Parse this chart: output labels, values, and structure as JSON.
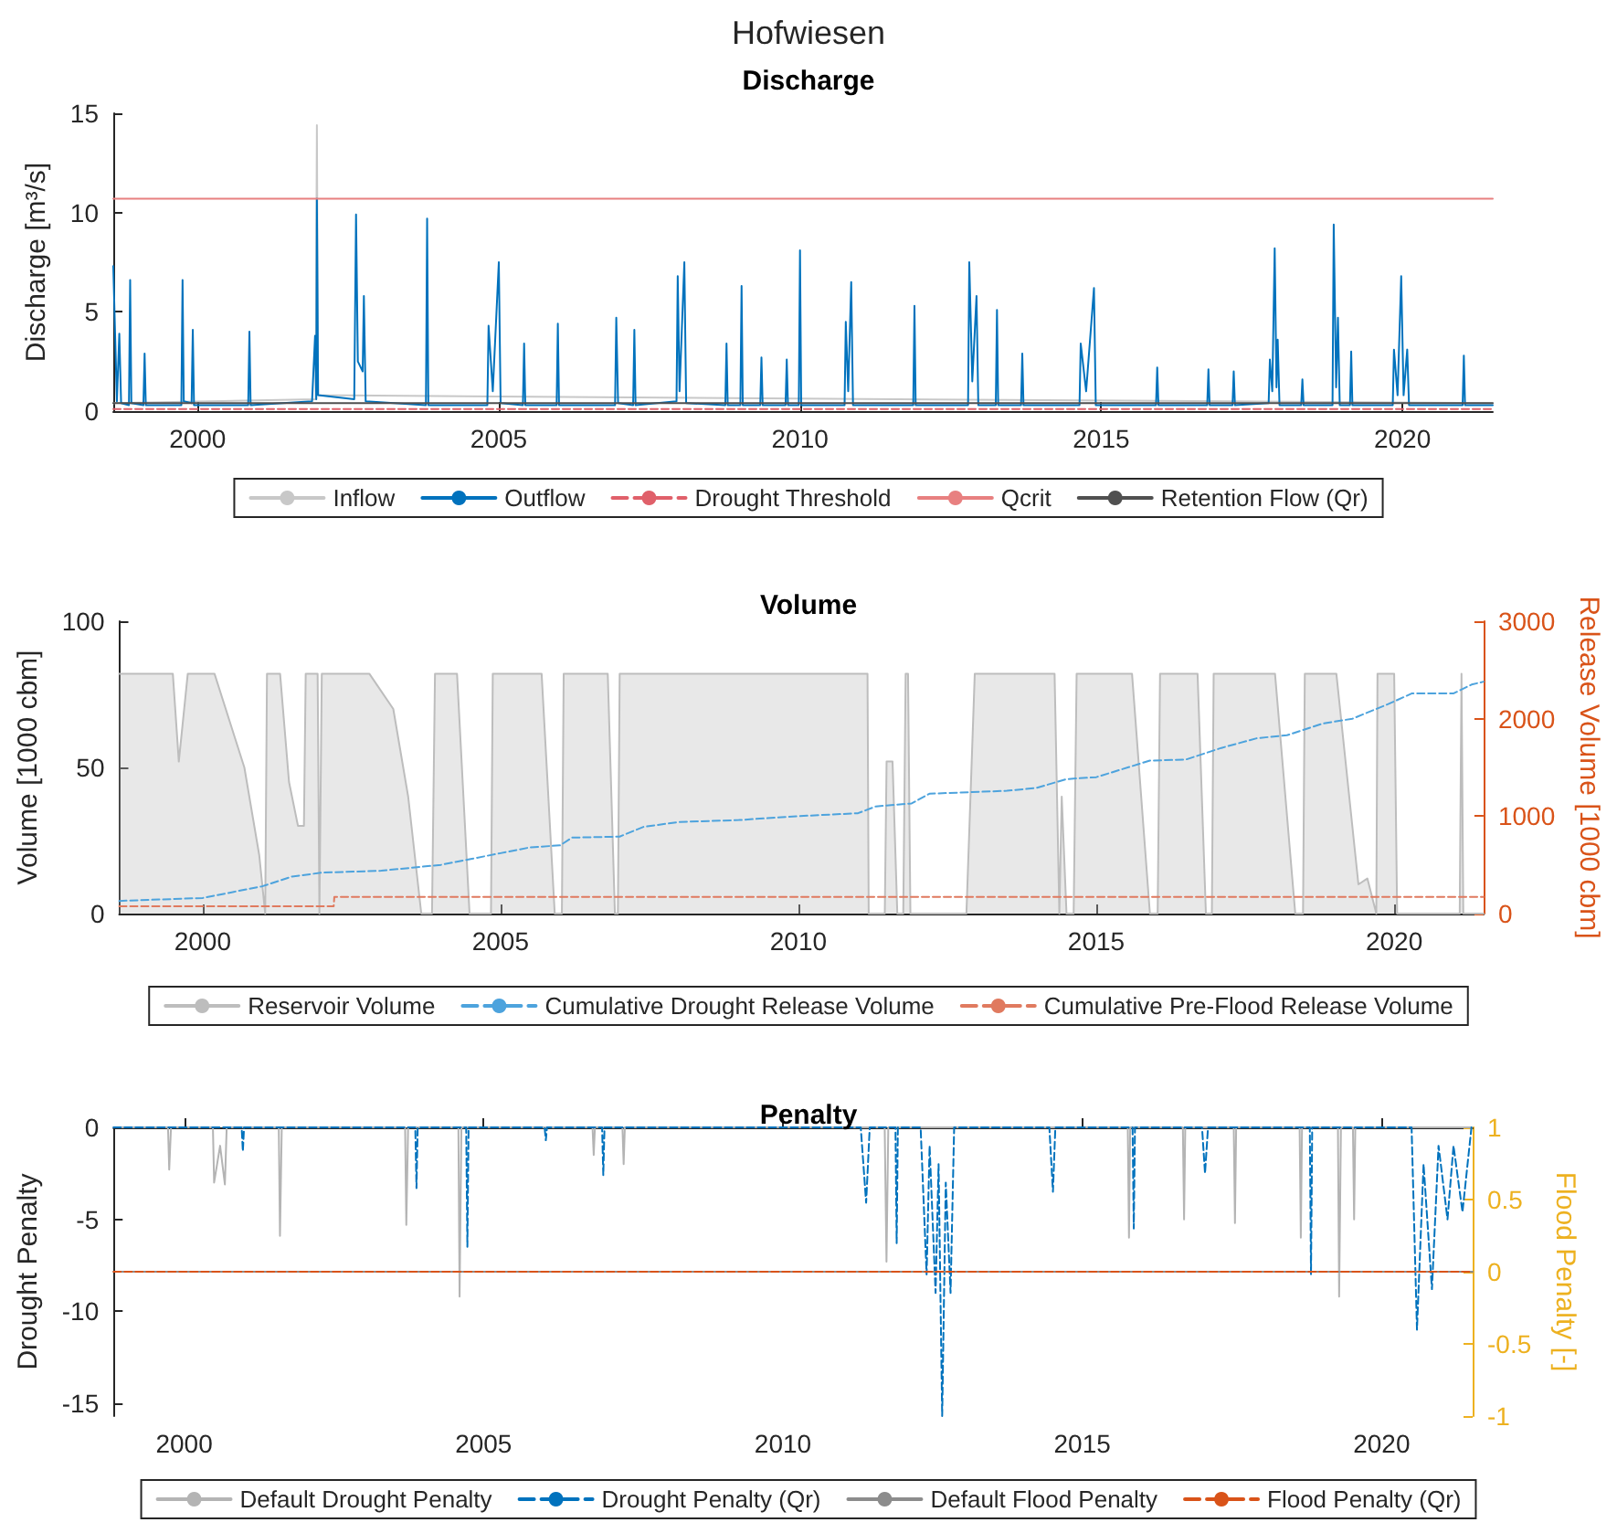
{
  "chart_data": [
    {
      "type": "line",
      "title": "Hofwiesen",
      "subtitle": "Discharge",
      "ylabel": "Discharge [m³/s]",
      "xlim": [
        1998.6,
        2021.5
      ],
      "xticks": [
        2000,
        2005,
        2010,
        2015,
        2020
      ],
      "ylim": [
        0,
        15
      ],
      "yticks": [
        0,
        5,
        10,
        15
      ],
      "grid": false,
      "legend": "bottom",
      "marker": "none",
      "series": [
        {
          "name": "Inflow",
          "color": "#c8c8c8",
          "x": [
            1998.6,
            2001.96,
            2001.98,
            2002.0,
            2021.5
          ],
          "values": [
            0.4,
            0.6,
            14.4,
            0.8,
            0.4
          ]
        },
        {
          "name": "Outflow",
          "color": "#0072bd",
          "x": [
            1998.6,
            1998.66,
            1998.7,
            1998.73,
            1998.86,
            1998.88,
            1998.9,
            1999.1,
            1999.12,
            1999.14,
            1999.73,
            1999.75,
            1999.77,
            1999.9,
            1999.92,
            1999.94,
            2000.84,
            2000.86,
            2000.88,
            2001.9,
            2001.95,
            2001.97,
            2001.98,
            2002.0,
            2002.6,
            2002.63,
            2002.66,
            2002.74,
            2002.76,
            2002.79,
            2003.79,
            2003.81,
            2003.83,
            2004.81,
            2004.83,
            2004.9,
            2005.0,
            2005.03,
            2005.4,
            2005.42,
            2005.44,
            2005.96,
            2005.98,
            2006.0,
            2006.93,
            2006.95,
            2006.98,
            2007.23,
            2007.25,
            2007.27,
            2007.95,
            2007.97,
            2008.0,
            2008.08,
            2008.11,
            2008.76,
            2008.78,
            2008.8,
            2009.01,
            2009.03,
            2009.05,
            2009.34,
            2009.36,
            2009.38,
            2009.76,
            2009.78,
            2009.8,
            2009.98,
            2010.0,
            2010.02,
            2010.74,
            2010.76,
            2010.8,
            2010.85,
            2010.88,
            2011.88,
            2011.9,
            2011.92,
            2012.79,
            2012.81,
            2012.86,
            2012.93,
            2012.96,
            2013.25,
            2013.27,
            2013.29,
            2013.67,
            2013.69,
            2013.71,
            2014.64,
            2014.66,
            2014.75,
            2014.88,
            2014.91,
            2015.91,
            2015.93,
            2015.95,
            2016.76,
            2016.78,
            2016.8,
            2017.18,
            2017.2,
            2017.22,
            2017.78,
            2017.8,
            2017.84,
            2017.88,
            2017.91,
            2017.93,
            2017.96,
            2018.32,
            2018.34,
            2018.36,
            2018.84,
            2018.86,
            2018.9,
            2018.93,
            2018.96,
            2019.13,
            2019.15,
            2019.17,
            2019.84,
            2019.86,
            2019.92,
            2019.98,
            2020.02,
            2020.08,
            2020.11,
            2021.0,
            2021.02,
            2021.04,
            2021.5
          ],
          "values": [
            7.3,
            0.5,
            3.9,
            0.4,
            0.3,
            6.6,
            0.4,
            0.3,
            2.9,
            0.3,
            0.3,
            6.6,
            0.5,
            0.4,
            4.1,
            0.3,
            0.3,
            4.0,
            0.3,
            0.5,
            3.8,
            0.6,
            10.7,
            0.8,
            0.6,
            9.9,
            2.5,
            2.0,
            5.8,
            0.5,
            0.3,
            9.7,
            0.3,
            0.3,
            4.3,
            1.0,
            7.5,
            0.4,
            0.3,
            3.4,
            0.3,
            0.3,
            4.4,
            0.3,
            0.3,
            4.7,
            0.4,
            0.3,
            4.1,
            0.3,
            0.5,
            6.8,
            1.0,
            7.5,
            0.4,
            0.3,
            3.4,
            0.3,
            0.3,
            6.3,
            0.3,
            0.3,
            2.7,
            0.3,
            0.3,
            2.6,
            0.3,
            0.3,
            8.1,
            0.3,
            0.3,
            4.5,
            1.0,
            6.5,
            0.3,
            0.3,
            5.3,
            0.3,
            0.3,
            7.5,
            1.5,
            5.8,
            0.3,
            0.3,
            5.1,
            0.3,
            0.3,
            2.9,
            0.3,
            0.3,
            3.4,
            1.0,
            6.2,
            0.3,
            0.3,
            2.2,
            0.3,
            0.3,
            2.1,
            0.3,
            0.3,
            2.0,
            0.3,
            0.4,
            2.6,
            1.0,
            8.2,
            1.2,
            3.6,
            0.3,
            0.3,
            1.6,
            0.3,
            0.3,
            9.4,
            1.2,
            4.7,
            0.3,
            0.3,
            3.0,
            0.3,
            0.3,
            3.1,
            0.8,
            6.8,
            0.8,
            3.1,
            0.3,
            0.3,
            2.8,
            0.3,
            0.3
          ]
        },
        {
          "name": "Drought Threshold",
          "color": "#e0606a",
          "line_style": "dashed",
          "x": [
            1998.6,
            2021.5
          ],
          "values": [
            0.1,
            0.1
          ]
        },
        {
          "name": "Qcrit",
          "color": "#e88080",
          "x": [
            1998.6,
            2021.5
          ],
          "values": [
            10.7,
            10.7
          ]
        },
        {
          "name": "Retention Flow (Qr)",
          "color": "#505050",
          "x": [
            1998.6,
            2021.5
          ],
          "values": [
            0.4,
            0.4
          ]
        }
      ]
    },
    {
      "type": "line",
      "title": "Volume",
      "ylabel": "Volume [1000 cbm]",
      "y2label": "Release Volume [1000 cbm]",
      "xlim": [
        1998.6,
        2021.5
      ],
      "xticks": [
        2000,
        2005,
        2010,
        2015,
        2020
      ],
      "ylim": [
        0,
        100
      ],
      "yticks": [
        0,
        50,
        100
      ],
      "y2lim": [
        0,
        3000
      ],
      "y2ticks": [
        0,
        1000,
        2000,
        3000
      ],
      "grid": false,
      "legend": "bottom",
      "marker": "none",
      "series": [
        {
          "name": "Reservoir Volume",
          "type": "area",
          "color": "#bdbdbd",
          "x": [
            1998.6,
            1999.5,
            1999.6,
            1999.75,
            2000.2,
            2000.7,
            2000.95,
            2001.05,
            2001.08,
            2001.3,
            2001.45,
            2001.6,
            2001.7,
            2001.73,
            2001.93,
            2001.96,
            2002.0,
            2002.8,
            2003.2,
            2003.45,
            2003.67,
            2003.85,
            2003.9,
            2004.27,
            2004.48,
            2004.84,
            2004.87,
            2005.69,
            2005.91,
            2006.03,
            2006.06,
            2006.8,
            2006.92,
            2006.97,
            2007.0,
            2011.16,
            2011.18,
            2011.45,
            2011.48,
            2011.58,
            2011.66,
            2011.76,
            2011.8,
            2011.84,
            2011.88,
            2012.82,
            2012.96,
            2014.3,
            2014.38,
            2014.42,
            2014.5,
            2014.62,
            2014.67,
            2015.6,
            2015.9,
            2016.03,
            2016.07,
            2016.7,
            2016.84,
            2016.94,
            2016.97,
            2018.0,
            2018.34,
            2018.47,
            2018.5,
            2019.03,
            2019.4,
            2019.55,
            2019.7,
            2019.72,
            2020.0,
            2020.05,
            2021.1,
            2021.13,
            2021.16,
            2021.5
          ],
          "values": [
            82,
            82,
            52,
            82,
            82,
            50,
            20,
            0,
            82,
            82,
            45,
            30,
            30,
            82,
            82,
            0,
            82,
            82,
            70,
            40,
            0,
            0,
            82,
            82,
            0,
            0,
            82,
            82,
            0,
            0,
            82,
            82,
            0,
            0,
            82,
            82,
            0,
            0,
            52,
            52,
            0,
            0,
            82,
            82,
            0,
            0,
            82,
            82,
            0,
            40,
            0,
            0,
            82,
            82,
            0,
            0,
            82,
            82,
            0,
            0,
            82,
            82,
            0,
            0,
            82,
            82,
            10,
            12,
            0,
            82,
            82,
            0,
            0,
            82,
            0,
            0
          ]
        },
        {
          "name": "Cumulative Drought Release Volume",
          "color": "#4da3dd",
          "line_style": "dashed",
          "axis": "y2",
          "x": [
            1998.6,
            2000,
            2001,
            2001.5,
            2002,
            2003,
            2003.5,
            2004,
            2004.5,
            2005,
            2005.5,
            2006,
            2006.2,
            2007,
            2007.4,
            2008,
            2009,
            2010,
            2011,
            2011.3,
            2011.9,
            2012.2,
            2013.5,
            2014,
            2014.5,
            2015,
            2015.9,
            2016.5,
            2017.1,
            2017.7,
            2018.2,
            2018.8,
            2019.3,
            2019.9,
            2020.3,
            2021,
            2021.3,
            2021.5
          ],
          "values": [
            130,
            160,
            280,
            380,
            420,
            440,
            470,
            500,
            560,
            620,
            680,
            700,
            780,
            790,
            890,
            940,
            960,
            1000,
            1030,
            1100,
            1130,
            1230,
            1260,
            1290,
            1380,
            1400,
            1570,
            1580,
            1700,
            1800,
            1830,
            1950,
            2000,
            2150,
            2260,
            2260,
            2350,
            2380
          ]
        },
        {
          "name": "Cumulative Pre-Flood Release Volume",
          "color": "#e07a5f",
          "line_style": "dashed",
          "axis": "y2",
          "x": [
            1998.6,
            2002.2,
            2002.21,
            2021.5
          ],
          "values": [
            75,
            75,
            170,
            170
          ]
        }
      ]
    },
    {
      "type": "line",
      "title": "Penalty",
      "ylabel": "Drought Penalty",
      "y2label": "Flood Penalty [-]",
      "xlim": [
        1998.82,
        2021.52
      ],
      "xticks": [
        2000,
        2005,
        2010,
        2015,
        2020
      ],
      "ylim": [
        -15.7,
        0
      ],
      "yticks": [
        -15,
        -10,
        -5,
        0
      ],
      "y2lim": [
        -1,
        1
      ],
      "y2ticks": [
        -1,
        -0.5,
        0,
        0.5,
        1
      ],
      "grid": false,
      "legend": "bottom",
      "marker": "none",
      "series": [
        {
          "name": "Default Drought Penalty",
          "color": "#b4b4b4",
          "x": [
            1998.82,
            1999.73,
            1999.75,
            1999.78,
            2000.48,
            2000.5,
            2000.6,
            2000.68,
            2000.71,
            2001.58,
            2001.6,
            2001.63,
            2003.69,
            2003.71,
            2003.74,
            2004.58,
            2004.6,
            2004.63,
            2006.82,
            2006.84,
            2006.86,
            2007.32,
            2007.34,
            2007.36,
            2011.7,
            2011.73,
            2011.76,
            2015.76,
            2015.78,
            2015.8,
            2016.68,
            2016.7,
            2016.72,
            2017.53,
            2017.55,
            2017.57,
            2018.63,
            2018.65,
            2018.67,
            2019.27,
            2019.29,
            2019.32,
            2019.52,
            2019.54,
            2019.56,
            2021.5
          ],
          "values": [
            0,
            0,
            -2.3,
            0,
            0,
            -3.0,
            -1,
            -3.1,
            0,
            0,
            -5.9,
            0,
            0,
            -5.3,
            0,
            0,
            -9.2,
            0,
            0,
            -1.5,
            0,
            0,
            -2.0,
            0,
            0,
            -7.3,
            0,
            0,
            -6.0,
            0,
            0,
            -5.0,
            0,
            0,
            -5.2,
            0,
            0,
            -6.0,
            0,
            0,
            -9.2,
            0,
            0,
            -5.0,
            0,
            0
          ]
        },
        {
          "name": "Drought Penalty (Qr)",
          "color": "#0072bd",
          "line_style": "dashed",
          "x": [
            1998.82,
            2000.96,
            2000.98,
            2001.0,
            2003.86,
            2003.88,
            2003.9,
            2004.71,
            2004.73,
            2004.75,
            2006.02,
            2006.04,
            2006.06,
            2006.98,
            2007.0,
            2007.02,
            2011.3,
            2011.39,
            2011.45,
            2011.88,
            2011.9,
            2011.92,
            2012.3,
            2012.4,
            2012.45,
            2012.55,
            2012.6,
            2012.66,
            2012.72,
            2012.8,
            2012.86,
            2014.45,
            2014.51,
            2014.55,
            2015.84,
            2015.86,
            2015.88,
            2017.0,
            2017.05,
            2017.1,
            2018.8,
            2018.82,
            2018.84,
            2020.5,
            2020.59,
            2020.7,
            2020.84,
            2020.95,
            2021.1,
            2021.2,
            2021.35,
            2021.5
          ],
          "values": [
            0,
            0,
            -1.3,
            0,
            0,
            -3.3,
            0,
            0,
            -6.5,
            0,
            0,
            -0.7,
            0,
            0,
            -2.6,
            0,
            0,
            -4.1,
            0,
            0,
            -6.3,
            0,
            0,
            -8.0,
            -1,
            -9.0,
            -2,
            -15.7,
            -3,
            -9.0,
            0,
            0,
            -3.5,
            0,
            0,
            -5.5,
            0,
            0,
            -2.5,
            0,
            0,
            -8.0,
            0,
            0,
            -11.0,
            -2,
            -8.8,
            -1,
            -5.0,
            -1,
            -4.6,
            0
          ]
        },
        {
          "name": "Default Flood Penalty",
          "color": "#8c8c8c",
          "axis": "y2",
          "x": [
            1998.82,
            2021.52
          ],
          "values": [
            0,
            0
          ]
        },
        {
          "name": "Flood Penalty (Qr)",
          "color": "#d95319",
          "line_style": "dashed",
          "axis": "y2",
          "x": [
            1998.82,
            2021.52
          ],
          "values": [
            0,
            0
          ]
        }
      ]
    }
  ]
}
